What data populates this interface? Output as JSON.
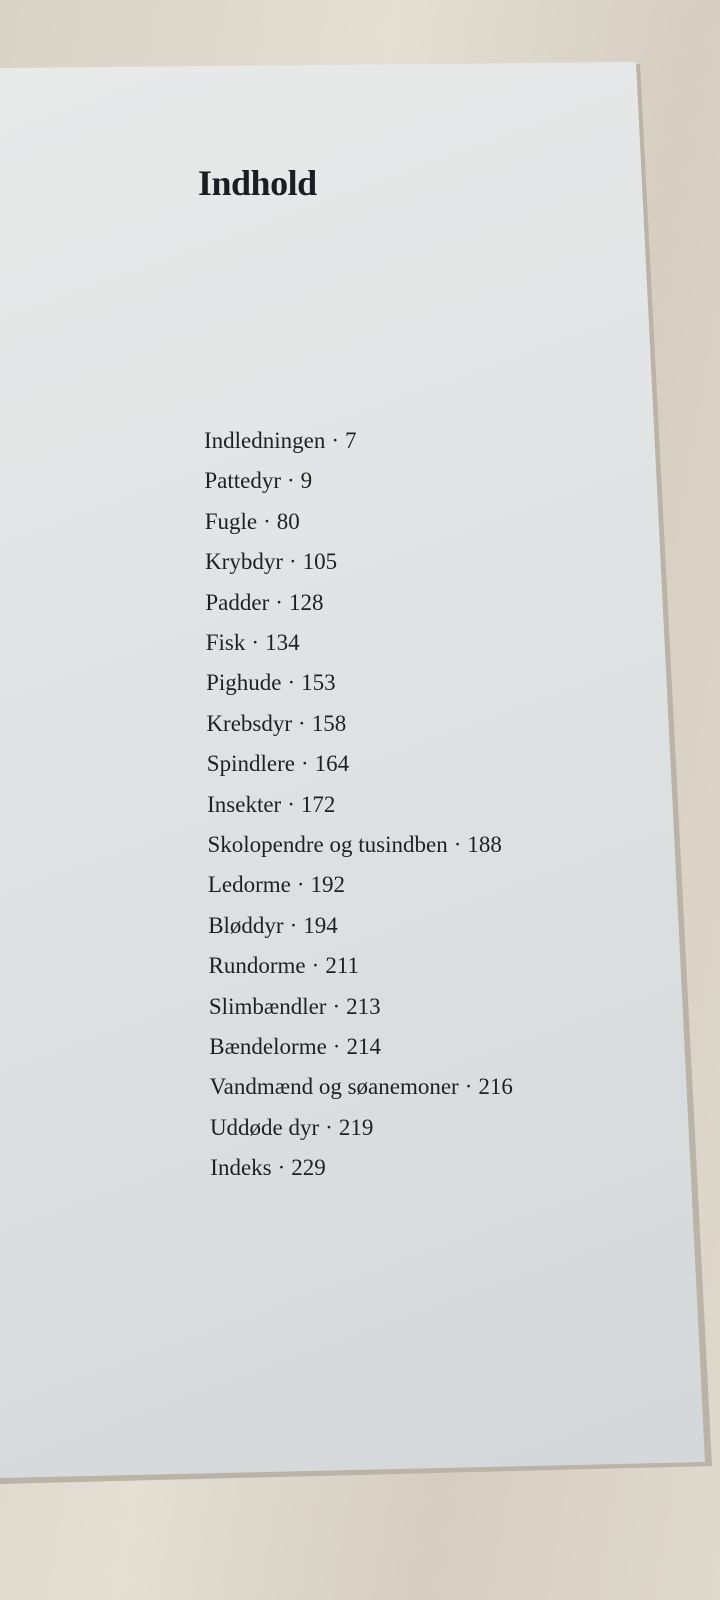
{
  "title": "Indhold",
  "separator": "·",
  "entries": [
    {
      "label": "Indledningen",
      "page": "7"
    },
    {
      "label": "Pattedyr",
      "page": "9"
    },
    {
      "label": "Fugle",
      "page": "80"
    },
    {
      "label": "Krybdyr",
      "page": "105"
    },
    {
      "label": "Padder",
      "page": "128"
    },
    {
      "label": "Fisk",
      "page": "134"
    },
    {
      "label": "Pighude",
      "page": "153"
    },
    {
      "label": "Krebsdyr",
      "page": "158"
    },
    {
      "label": "Spindlere",
      "page": "164"
    },
    {
      "label": "Insekter",
      "page": "172"
    },
    {
      "label": "Skolopendre og tusindben",
      "page": "188"
    },
    {
      "label": "Ledorme",
      "page": "192"
    },
    {
      "label": "Bløddyr",
      "page": "194"
    },
    {
      "label": "Rundorme",
      "page": "211"
    },
    {
      "label": "Slimbændler",
      "page": "213"
    },
    {
      "label": "Bændelorme",
      "page": "214"
    },
    {
      "label": "Vandmænd og søanemoner",
      "page": "216"
    },
    {
      "label": "Uddøde dyr",
      "page": "219"
    },
    {
      "label": "Indeks",
      "page": "229"
    }
  ]
}
